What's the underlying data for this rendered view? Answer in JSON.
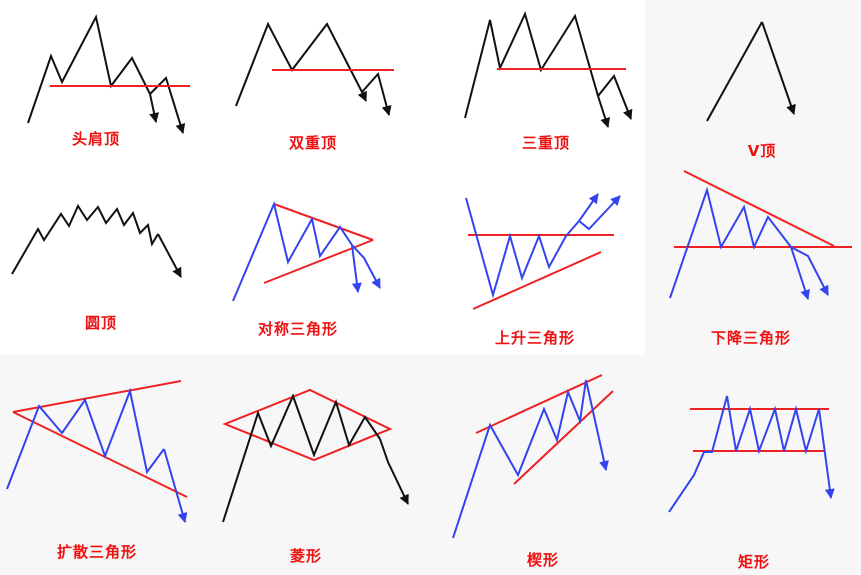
{
  "colors": {
    "black": "#111111",
    "blue": "#3344ee",
    "red": "#ee2222",
    "caption": "#ee1111",
    "cell_bg": "#f7f7f7"
  },
  "patterns": [
    {
      "id": "head-and-shoulders",
      "label": "头肩顶"
    },
    {
      "id": "double-top",
      "label": "双重顶"
    },
    {
      "id": "triple-top",
      "label": "三重顶"
    },
    {
      "id": "v-top",
      "label": "V顶"
    },
    {
      "id": "rounding-top",
      "label": "圆顶"
    },
    {
      "id": "symmetrical-triangle",
      "label": "对称三角形"
    },
    {
      "id": "ascending-triangle",
      "label": "上升三角形"
    },
    {
      "id": "descending-triangle",
      "label": "下降三角形"
    },
    {
      "id": "broadening-triangle",
      "label": "扩散三角形"
    },
    {
      "id": "diamond",
      "label": "菱形"
    },
    {
      "id": "wedge",
      "label": "楔形"
    },
    {
      "id": "rectangle",
      "label": "矩形"
    }
  ]
}
